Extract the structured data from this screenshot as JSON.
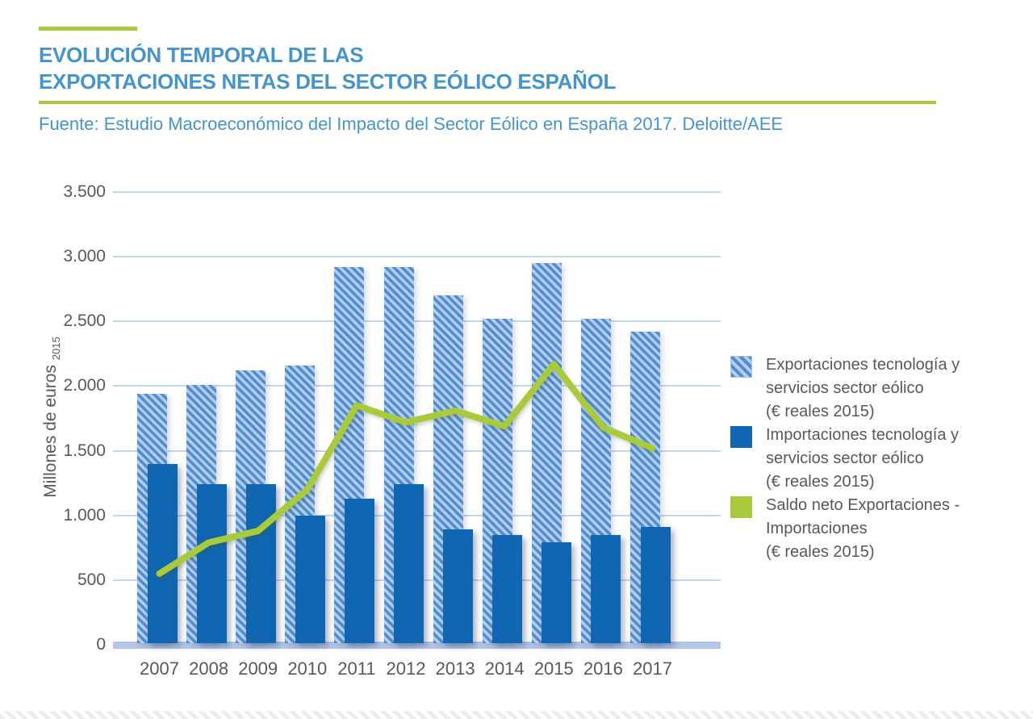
{
  "header": {
    "title_line1": "EVOLUCIÓN TEMPORAL DE LAS",
    "title_line2": "EXPORTACIONES NETAS DEL SECTOR EÓLICO ESPAÑOL",
    "source": "Fuente: Estudio Macroeconómico del Impacto del Sector Eólico en España 2017. Deloitte/AEE"
  },
  "colors": {
    "title_blue": "#4594cb",
    "accent_green": "#a9ca3c",
    "export_stripe_blue": "#4f8dd1",
    "export_stripe_light": "#b6cdee",
    "import_blue": "#1066b0",
    "gridline_blue": "#c6d6ef",
    "baseline_blue": "#b4c6e8",
    "axis_text_gray": "#58585b"
  },
  "chart_data": {
    "type": "bar",
    "title": "Evolución temporal de las exportaciones netas del sector eólico español",
    "categories": [
      "2007",
      "2008",
      "2009",
      "2010",
      "2011",
      "2012",
      "2013",
      "2014",
      "2015",
      "2016",
      "2017"
    ],
    "series": [
      {
        "name": "Exportaciones tecnología y servicios sector eólico (€ reales 2015)",
        "type": "bar",
        "style": "striped",
        "values": [
          1940,
          2010,
          2120,
          2160,
          2920,
          2920,
          2700,
          2520,
          2950,
          2520,
          2420
        ]
      },
      {
        "name": "Importaciones tecnología y servicios sector eólico (€ reales 2015)",
        "type": "bar",
        "style": "solid",
        "values": [
          1400,
          1240,
          1240,
          1000,
          1130,
          1240,
          890,
          850,
          790,
          850,
          910
        ]
      },
      {
        "name": "Saldo neto Exportaciones - Importaciones (€ reales 2015)",
        "type": "line",
        "values": [
          550,
          790,
          880,
          1200,
          1850,
          1720,
          1810,
          1690,
          2170,
          1680,
          1520
        ]
      }
    ],
    "ylabel": "Millones de euros",
    "ylabel_subscript": "2015",
    "xlabel": "",
    "ylim": [
      0,
      3500
    ],
    "ytick_step": 500,
    "ytick_labels": [
      "0",
      "500",
      "1.000",
      "1.500",
      "2.000",
      "2.500",
      "3.000",
      "3.500"
    ],
    "grid": true,
    "legend_position": "right"
  },
  "legend": {
    "items": [
      {
        "id": "exportaciones",
        "label": "Exportaciones tecnología y\nservicios sector eólico\n(€ reales 2015)"
      },
      {
        "id": "importaciones",
        "label": "Importaciones tecnología y\nservicios sector eólico\n(€ reales 2015)"
      },
      {
        "id": "saldo",
        "label": "Saldo neto Exportaciones -\nImportaciones\n(€ reales 2015)"
      }
    ]
  }
}
